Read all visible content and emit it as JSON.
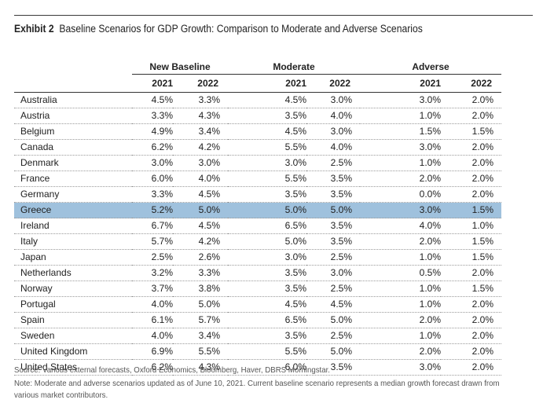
{
  "title": {
    "bold": "Exhibit 2",
    "text": "Baseline Scenarios for GDP Growth: Comparison to Moderate and Adverse Scenarios"
  },
  "groups": [
    "New Baseline",
    "Moderate",
    "Adverse"
  ],
  "years": [
    "2021",
    "2022"
  ],
  "highlight_color": "#9fc1dd",
  "rows": [
    {
      "country": "Australia",
      "values": [
        "4.5%",
        "3.3%",
        "4.5%",
        "3.0%",
        "3.0%",
        "2.0%"
      ]
    },
    {
      "country": "Austria",
      "values": [
        "3.3%",
        "4.3%",
        "3.5%",
        "4.0%",
        "1.0%",
        "2.0%"
      ]
    },
    {
      "country": "Belgium",
      "values": [
        "4.9%",
        "3.4%",
        "4.5%",
        "3.0%",
        "1.5%",
        "1.5%"
      ]
    },
    {
      "country": "Canada",
      "values": [
        "6.2%",
        "4.2%",
        "5.5%",
        "4.0%",
        "3.0%",
        "2.0%"
      ]
    },
    {
      "country": "Denmark",
      "values": [
        "3.0%",
        "3.0%",
        "3.0%",
        "2.5%",
        "1.0%",
        "2.0%"
      ]
    },
    {
      "country": "France",
      "values": [
        "6.0%",
        "4.0%",
        "5.5%",
        "3.5%",
        "2.0%",
        "2.0%"
      ]
    },
    {
      "country": "Germany",
      "values": [
        "3.3%",
        "4.5%",
        "3.5%",
        "3.5%",
        "0.0%",
        "2.0%"
      ]
    },
    {
      "country": "Greece",
      "values": [
        "5.2%",
        "5.0%",
        "5.0%",
        "5.0%",
        "3.0%",
        "1.5%"
      ],
      "highlighted": true
    },
    {
      "country": "Ireland",
      "values": [
        "6.7%",
        "4.5%",
        "6.5%",
        "3.5%",
        "4.0%",
        "1.0%"
      ]
    },
    {
      "country": "Italy",
      "values": [
        "5.7%",
        "4.2%",
        "5.0%",
        "3.5%",
        "2.0%",
        "1.5%"
      ]
    },
    {
      "country": "Japan",
      "values": [
        "2.5%",
        "2.6%",
        "3.0%",
        "2.5%",
        "1.0%",
        "1.5%"
      ]
    },
    {
      "country": "Netherlands",
      "values": [
        "3.2%",
        "3.3%",
        "3.5%",
        "3.0%",
        "0.5%",
        "2.0%"
      ]
    },
    {
      "country": "Norway",
      "values": [
        "3.7%",
        "3.8%",
        "3.5%",
        "2.5%",
        "1.0%",
        "1.5%"
      ]
    },
    {
      "country": "Portugal",
      "values": [
        "4.0%",
        "5.0%",
        "4.5%",
        "4.5%",
        "1.0%",
        "2.0%"
      ]
    },
    {
      "country": "Spain",
      "values": [
        "6.1%",
        "5.7%",
        "6.5%",
        "5.0%",
        "2.0%",
        "2.0%"
      ]
    },
    {
      "country": "Sweden",
      "values": [
        "4.0%",
        "3.4%",
        "3.5%",
        "2.5%",
        "1.0%",
        "2.0%"
      ]
    },
    {
      "country": "United Kingdom",
      "values": [
        "6.9%",
        "5.5%",
        "5.5%",
        "5.0%",
        "2.0%",
        "2.0%"
      ]
    },
    {
      "country": "United States",
      "values": [
        "6.2%",
        "4.3%",
        "6.0%",
        "3.5%",
        "3.0%",
        "2.0%"
      ]
    }
  ],
  "source": "Source: Various external forecasts, Oxford Economics, Bloomberg, Haver, DBRS Morningstar.",
  "note_line1": "Note: Moderate and adverse scenarios updated as of June 10, 2021. Current baseline scenario represents a median growth forecast drawn from",
  "note_line2": "various market contributors."
}
